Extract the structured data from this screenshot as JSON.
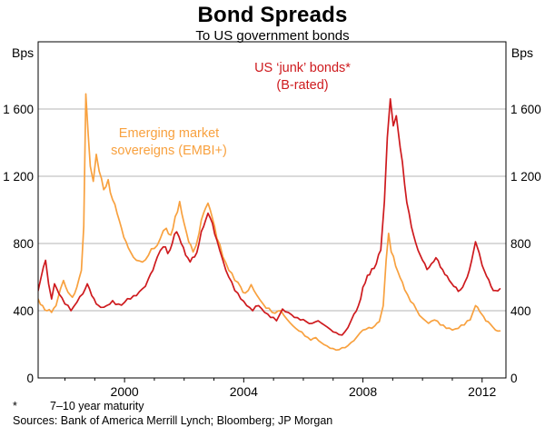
{
  "page": {
    "title": "Bond Spreads",
    "subtitle": "To US government bonds"
  },
  "axes": {
    "unit_left": "Bps",
    "unit_right": "Bps"
  },
  "annotations": {
    "junk_line1": "US ‘junk’ bonds*",
    "junk_line2": "(B-rated)",
    "embi_line1": "Emerging market",
    "embi_line2": "sovereigns (EMBI+)"
  },
  "footnotes": {
    "asterisk": "*",
    "note1": "7–10 year maturity",
    "sources": "Sources: Bank of America Merrill Lynch; Bloomberg; JP Morgan"
  },
  "colors": {
    "junk": "#ce1a1e",
    "embi": "#f8a13f",
    "grid": "#b5b5b5",
    "frame": "#000000",
    "text": "#000000"
  },
  "chart_data": {
    "type": "line",
    "title": "Bond Spreads",
    "subtitle": "To US government bonds",
    "ylabel": "Bps",
    "ylim": [
      0,
      2000
    ],
    "yticks": [
      0,
      400,
      800,
      1200,
      1600
    ],
    "xlim": [
      1997.1,
      2012.8
    ],
    "xticks": [
      2000,
      2004,
      2008,
      2012
    ],
    "minor_xticks_every_year": true,
    "grid": true,
    "legend_position": "inline-annotations",
    "series": [
      {
        "id": "us_junk",
        "name": "US ‘junk’ bonds* (B-rated)",
        "color": "#ce1a1e",
        "points": [
          [
            1997.1,
            520
          ],
          [
            1997.2,
            600
          ],
          [
            1997.35,
            700
          ],
          [
            1997.45,
            560
          ],
          [
            1997.55,
            470
          ],
          [
            1997.65,
            560
          ],
          [
            1997.8,
            500
          ],
          [
            1998.0,
            440
          ],
          [
            1998.2,
            400
          ],
          [
            1998.4,
            450
          ],
          [
            1998.6,
            500
          ],
          [
            1998.75,
            560
          ],
          [
            1998.9,
            490
          ],
          [
            1999.05,
            440
          ],
          [
            1999.2,
            420
          ],
          [
            1999.4,
            430
          ],
          [
            1999.6,
            460
          ],
          [
            1999.8,
            440
          ],
          [
            2000.0,
            450
          ],
          [
            2000.2,
            470
          ],
          [
            2000.4,
            490
          ],
          [
            2000.6,
            530
          ],
          [
            2000.8,
            590
          ],
          [
            2000.95,
            640
          ],
          [
            2001.1,
            720
          ],
          [
            2001.3,
            780
          ],
          [
            2001.45,
            740
          ],
          [
            2001.6,
            800
          ],
          [
            2001.75,
            870
          ],
          [
            2001.9,
            800
          ],
          [
            2002.05,
            730
          ],
          [
            2002.2,
            690
          ],
          [
            2002.35,
            720
          ],
          [
            2002.5,
            800
          ],
          [
            2002.65,
            900
          ],
          [
            2002.8,
            980
          ],
          [
            2002.95,
            920
          ],
          [
            2003.1,
            820
          ],
          [
            2003.3,
            700
          ],
          [
            2003.5,
            600
          ],
          [
            2003.7,
            520
          ],
          [
            2003.9,
            470
          ],
          [
            2004.1,
            430
          ],
          [
            2004.3,
            400
          ],
          [
            2004.5,
            430
          ],
          [
            2004.7,
            390
          ],
          [
            2004.9,
            360
          ],
          [
            2005.1,
            340
          ],
          [
            2005.3,
            410
          ],
          [
            2005.5,
            390
          ],
          [
            2005.7,
            360
          ],
          [
            2005.9,
            345
          ],
          [
            2006.1,
            335
          ],
          [
            2006.3,
            325
          ],
          [
            2006.5,
            340
          ],
          [
            2006.7,
            315
          ],
          [
            2006.9,
            290
          ],
          [
            2007.1,
            270
          ],
          [
            2007.3,
            255
          ],
          [
            2007.5,
            300
          ],
          [
            2007.7,
            380
          ],
          [
            2007.85,
            430
          ],
          [
            2008.0,
            540
          ],
          [
            2008.15,
            610
          ],
          [
            2008.3,
            650
          ],
          [
            2008.45,
            680
          ],
          [
            2008.6,
            760
          ],
          [
            2008.72,
            1050
          ],
          [
            2008.82,
            1430
          ],
          [
            2008.92,
            1660
          ],
          [
            2009.02,
            1500
          ],
          [
            2009.12,
            1560
          ],
          [
            2009.25,
            1370
          ],
          [
            2009.4,
            1150
          ],
          [
            2009.55,
            980
          ],
          [
            2009.7,
            850
          ],
          [
            2009.85,
            760
          ],
          [
            2010.0,
            700
          ],
          [
            2010.15,
            645
          ],
          [
            2010.3,
            680
          ],
          [
            2010.45,
            715
          ],
          [
            2010.6,
            660
          ],
          [
            2010.75,
            615
          ],
          [
            2010.9,
            580
          ],
          [
            2011.05,
            545
          ],
          [
            2011.2,
            515
          ],
          [
            2011.35,
            540
          ],
          [
            2011.5,
            600
          ],
          [
            2011.65,
            700
          ],
          [
            2011.78,
            810
          ],
          [
            2011.9,
            745
          ],
          [
            2012.0,
            670
          ],
          [
            2012.15,
            605
          ],
          [
            2012.3,
            545
          ],
          [
            2012.45,
            520
          ],
          [
            2012.6,
            530
          ]
        ]
      },
      {
        "id": "embi",
        "name": "Emerging market sovereigns (EMBI+)",
        "color": "#f8a13f",
        "points": [
          [
            1997.1,
            470
          ],
          [
            1997.25,
            430
          ],
          [
            1997.4,
            400
          ],
          [
            1997.55,
            390
          ],
          [
            1997.7,
            430
          ],
          [
            1997.85,
            530
          ],
          [
            1997.95,
            580
          ],
          [
            1998.1,
            510
          ],
          [
            1998.25,
            480
          ],
          [
            1998.4,
            540
          ],
          [
            1998.55,
            640
          ],
          [
            1998.63,
            900
          ],
          [
            1998.7,
            1690
          ],
          [
            1998.78,
            1450
          ],
          [
            1998.85,
            1260
          ],
          [
            1998.95,
            1170
          ],
          [
            1999.05,
            1330
          ],
          [
            1999.15,
            1230
          ],
          [
            1999.3,
            1120
          ],
          [
            1999.45,
            1180
          ],
          [
            1999.6,
            1060
          ],
          [
            1999.75,
            980
          ],
          [
            1999.9,
            890
          ],
          [
            2000.05,
            810
          ],
          [
            2000.2,
            750
          ],
          [
            2000.4,
            700
          ],
          [
            2000.6,
            690
          ],
          [
            2000.8,
            730
          ],
          [
            2001.0,
            770
          ],
          [
            2001.2,
            830
          ],
          [
            2001.4,
            890
          ],
          [
            2001.55,
            850
          ],
          [
            2001.7,
            960
          ],
          [
            2001.85,
            1050
          ],
          [
            2002.0,
            920
          ],
          [
            2002.15,
            810
          ],
          [
            2002.3,
            750
          ],
          [
            2002.5,
            860
          ],
          [
            2002.65,
            980
          ],
          [
            2002.8,
            1040
          ],
          [
            2002.95,
            950
          ],
          [
            2003.1,
            830
          ],
          [
            2003.3,
            720
          ],
          [
            2003.5,
            640
          ],
          [
            2003.7,
            580
          ],
          [
            2003.9,
            540
          ],
          [
            2004.05,
            505
          ],
          [
            2004.25,
            555
          ],
          [
            2004.45,
            490
          ],
          [
            2004.65,
            440
          ],
          [
            2004.85,
            415
          ],
          [
            2005.05,
            385
          ],
          [
            2005.25,
            400
          ],
          [
            2005.45,
            350
          ],
          [
            2005.65,
            310
          ],
          [
            2005.85,
            280
          ],
          [
            2006.05,
            250
          ],
          [
            2006.25,
            225
          ],
          [
            2006.42,
            240
          ],
          [
            2006.6,
            210
          ],
          [
            2006.8,
            190
          ],
          [
            2007.0,
            175
          ],
          [
            2007.2,
            168
          ],
          [
            2007.4,
            180
          ],
          [
            2007.6,
            210
          ],
          [
            2007.8,
            245
          ],
          [
            2008.0,
            285
          ],
          [
            2008.2,
            300
          ],
          [
            2008.4,
            310
          ],
          [
            2008.55,
            335
          ],
          [
            2008.68,
            430
          ],
          [
            2008.78,
            700
          ],
          [
            2008.86,
            860
          ],
          [
            2008.95,
            750
          ],
          [
            2009.1,
            665
          ],
          [
            2009.25,
            595
          ],
          [
            2009.4,
            525
          ],
          [
            2009.6,
            455
          ],
          [
            2009.8,
            405
          ],
          [
            2010.0,
            355
          ],
          [
            2010.2,
            325
          ],
          [
            2010.4,
            345
          ],
          [
            2010.6,
            315
          ],
          [
            2010.8,
            295
          ],
          [
            2011.0,
            285
          ],
          [
            2011.2,
            295
          ],
          [
            2011.4,
            315
          ],
          [
            2011.6,
            345
          ],
          [
            2011.78,
            430
          ],
          [
            2011.92,
            395
          ],
          [
            2012.05,
            365
          ],
          [
            2012.2,
            335
          ],
          [
            2012.35,
            305
          ],
          [
            2012.45,
            285
          ],
          [
            2012.6,
            280
          ]
        ]
      }
    ]
  }
}
